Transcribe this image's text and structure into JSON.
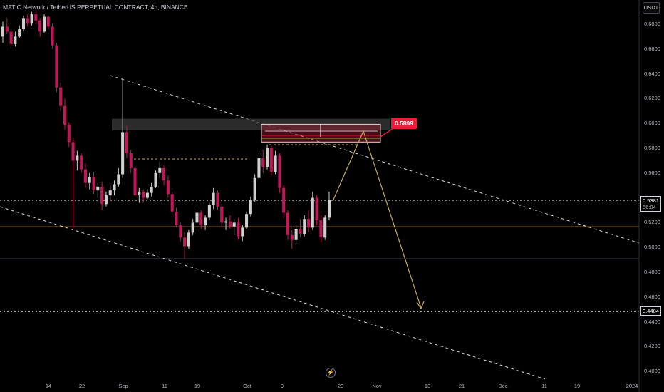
{
  "header": {
    "pair_title": "MATIC Network / TetherUS PERPETUAL CONTRACT, 4h, BINANCE",
    "currency": "USDT"
  },
  "colors": {
    "background": "#000000",
    "bull_candle": "#cfcfcf",
    "bear_candle": "#c2185b",
    "trendline": "#ffffff",
    "projection": "#c8a95a",
    "target_label": "#e91e3a"
  },
  "icons": {
    "bolt": "lightning-bolt-icon"
  },
  "chart_data": {
    "type": "candlestick",
    "title": "MATIC Network / TetherUS PERPETUAL CONTRACT, 4h, BINANCE",
    "y_ticks": [
      "0.6800",
      "0.6600",
      "0.6400",
      "0.6200",
      "0.6000",
      "0.5800",
      "0.5600",
      "0.5400",
      "0.5200",
      "0.5000",
      "0.4800",
      "0.4600",
      "0.4400",
      "0.4200",
      "0.4000"
    ],
    "x_ticks": [
      "14",
      "22",
      "Sep",
      "11",
      "19",
      "Oct",
      "9",
      "23",
      "Nov",
      "13",
      "21",
      "Dec",
      "11",
      "19",
      "2024"
    ],
    "ylim": [
      0.3975,
      0.6925
    ],
    "current_price": {
      "value": "0.5381",
      "countdown": "56:04"
    },
    "target_price": {
      "value": "0.4484"
    },
    "annotation_label": "0.5899",
    "horizontal_levels": [
      {
        "price": 0.5381,
        "style": "dotted"
      },
      {
        "price": 0.4484,
        "style": "dotted"
      },
      {
        "price": 0.5168,
        "style": "solid-orange"
      },
      {
        "price": 0.491,
        "style": "solid-gray"
      }
    ],
    "zone": {
      "from": 0.5945,
      "to": 0.6038
    },
    "long_box": {
      "from": 0.585,
      "to": 0.5993
    },
    "candles": [
      [
        0.67,
        0.682,
        0.665,
        0.678
      ],
      [
        0.678,
        0.685,
        0.672,
        0.674
      ],
      [
        0.674,
        0.676,
        0.66,
        0.664
      ],
      [
        0.664,
        0.674,
        0.662,
        0.67
      ],
      [
        0.67,
        0.679,
        0.669,
        0.676
      ],
      [
        0.676,
        0.687,
        0.674,
        0.685
      ],
      [
        0.685,
        0.688,
        0.678,
        0.681
      ],
      [
        0.681,
        0.69,
        0.679,
        0.688
      ],
      [
        0.688,
        0.691,
        0.68,
        0.683
      ],
      [
        0.683,
        0.685,
        0.67,
        0.674
      ],
      [
        0.674,
        0.688,
        0.673,
        0.686
      ],
      [
        0.686,
        0.687,
        0.675,
        0.678
      ],
      [
        0.678,
        0.681,
        0.66,
        0.663
      ],
      [
        0.663,
        0.665,
        0.625,
        0.629
      ],
      [
        0.629,
        0.633,
        0.61,
        0.614
      ],
      [
        0.614,
        0.62,
        0.595,
        0.599
      ],
      [
        0.599,
        0.601,
        0.581,
        0.585
      ],
      [
        0.585,
        0.588,
        0.515,
        0.57
      ],
      [
        0.57,
        0.578,
        0.562,
        0.574
      ],
      [
        0.574,
        0.576,
        0.56,
        0.563
      ],
      [
        0.563,
        0.568,
        0.548,
        0.552
      ],
      [
        0.552,
        0.56,
        0.547,
        0.557
      ],
      [
        0.557,
        0.561,
        0.543,
        0.546
      ],
      [
        0.546,
        0.552,
        0.54,
        0.549
      ],
      [
        0.549,
        0.553,
        0.53,
        0.535
      ],
      [
        0.535,
        0.545,
        0.533,
        0.542
      ],
      [
        0.542,
        0.55,
        0.538,
        0.546
      ],
      [
        0.546,
        0.554,
        0.542,
        0.551
      ],
      [
        0.551,
        0.564,
        0.549,
        0.559
      ],
      [
        0.559,
        0.637,
        0.556,
        0.593
      ],
      [
        0.593,
        0.598,
        0.572,
        0.576
      ],
      [
        0.576,
        0.579,
        0.56,
        0.564
      ],
      [
        0.564,
        0.566,
        0.538,
        0.542
      ],
      [
        0.542,
        0.548,
        0.536,
        0.545
      ],
      [
        0.545,
        0.547,
        0.536,
        0.54
      ],
      [
        0.54,
        0.547,
        0.539,
        0.544
      ],
      [
        0.544,
        0.552,
        0.541,
        0.549
      ],
      [
        0.549,
        0.562,
        0.548,
        0.56
      ],
      [
        0.56,
        0.569,
        0.556,
        0.564
      ],
      [
        0.564,
        0.566,
        0.55,
        0.554
      ],
      [
        0.554,
        0.558,
        0.54,
        0.543
      ],
      [
        0.543,
        0.545,
        0.526,
        0.529
      ],
      [
        0.529,
        0.532,
        0.516,
        0.518
      ],
      [
        0.518,
        0.52,
        0.505,
        0.508
      ],
      [
        0.508,
        0.512,
        0.491,
        0.501
      ],
      [
        0.501,
        0.514,
        0.499,
        0.512
      ],
      [
        0.512,
        0.523,
        0.51,
        0.52
      ],
      [
        0.52,
        0.531,
        0.518,
        0.528
      ],
      [
        0.528,
        0.53,
        0.515,
        0.518
      ],
      [
        0.518,
        0.526,
        0.514,
        0.524
      ],
      [
        0.524,
        0.536,
        0.522,
        0.534
      ],
      [
        0.534,
        0.548,
        0.531,
        0.544
      ],
      [
        0.544,
        0.546,
        0.53,
        0.533
      ],
      [
        0.533,
        0.535,
        0.516,
        0.52
      ],
      [
        0.52,
        0.524,
        0.514,
        0.521
      ],
      [
        0.521,
        0.526,
        0.515,
        0.517
      ],
      [
        0.517,
        0.523,
        0.51,
        0.52
      ],
      [
        0.52,
        0.524,
        0.506,
        0.509
      ],
      [
        0.509,
        0.518,
        0.505,
        0.516
      ],
      [
        0.516,
        0.529,
        0.515,
        0.527
      ],
      [
        0.527,
        0.541,
        0.525,
        0.538
      ],
      [
        0.538,
        0.559,
        0.537,
        0.556
      ],
      [
        0.556,
        0.576,
        0.554,
        0.572
      ],
      [
        0.572,
        0.579,
        0.56,
        0.565
      ],
      [
        0.565,
        0.583,
        0.563,
        0.58
      ],
      [
        0.58,
        0.582,
        0.558,
        0.561
      ],
      [
        0.561,
        0.578,
        0.559,
        0.574
      ],
      [
        0.574,
        0.576,
        0.544,
        0.548
      ],
      [
        0.548,
        0.55,
        0.524,
        0.528
      ],
      [
        0.528,
        0.53,
        0.506,
        0.51
      ],
      [
        0.51,
        0.514,
        0.499,
        0.506
      ],
      [
        0.506,
        0.518,
        0.503,
        0.515
      ],
      [
        0.515,
        0.523,
        0.508,
        0.511
      ],
      [
        0.511,
        0.526,
        0.509,
        0.523
      ],
      [
        0.523,
        0.53,
        0.512,
        0.516
      ],
      [
        0.516,
        0.545,
        0.514,
        0.54
      ],
      [
        0.54,
        0.542,
        0.518,
        0.522
      ],
      [
        0.522,
        0.526,
        0.504,
        0.508
      ],
      [
        0.508,
        0.526,
        0.506,
        0.524
      ],
      [
        0.524,
        0.545,
        0.522,
        0.5381
      ]
    ]
  }
}
